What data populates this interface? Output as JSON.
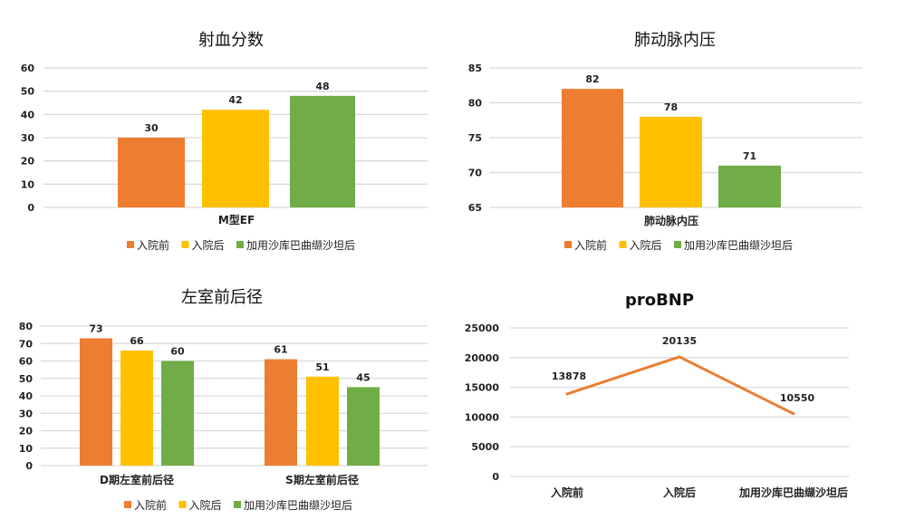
{
  "colors": {
    "入院前": "#ED7D31",
    "入院后": "#FFC000",
    "加用沙库巴曲缬沙坦后": "#70AD47",
    "line": "#ED7D31",
    "grid": "#D9D9D9"
  },
  "chart_data": [
    {
      "type": "bar",
      "title": "射血分数",
      "categories": [
        "M型EF"
      ],
      "series": [
        {
          "name": "入院前",
          "values": [
            30
          ]
        },
        {
          "name": "入院后",
          "values": [
            42
          ]
        },
        {
          "name": "加用沙库巴曲缬沙坦后",
          "values": [
            48
          ]
        }
      ],
      "ylim": [
        0,
        60
      ],
      "yticks": [
        0,
        10,
        20,
        30,
        40,
        50,
        60
      ],
      "grid": true,
      "legend": "bottom"
    },
    {
      "type": "bar",
      "title": "肺动脉内压",
      "categories": [
        "肺动脉内压"
      ],
      "series": [
        {
          "name": "入院前",
          "values": [
            82
          ]
        },
        {
          "name": "入院后",
          "values": [
            78
          ]
        },
        {
          "name": "加用沙库巴曲缬沙坦后",
          "values": [
            71
          ]
        }
      ],
      "ylim": [
        65,
        85
      ],
      "yticks": [
        65,
        70,
        75,
        80,
        85
      ],
      "grid": true,
      "legend": "bottom"
    },
    {
      "type": "bar",
      "title": "左室前后径",
      "categories": [
        "D期左室前后径",
        "S期左室前后径"
      ],
      "series": [
        {
          "name": "入院前",
          "values": [
            73,
            61
          ]
        },
        {
          "name": "入院后",
          "values": [
            66,
            51
          ]
        },
        {
          "name": "加用沙库巴曲缬沙坦后",
          "values": [
            60,
            45
          ]
        }
      ],
      "ylim": [
        0,
        80
      ],
      "yticks": [
        0,
        10,
        20,
        30,
        40,
        50,
        60,
        70,
        80
      ],
      "grid": true,
      "legend": "bottom"
    },
    {
      "type": "line",
      "title": "proBNP",
      "categories": [
        "入院前",
        "入院后",
        "加用沙库巴曲缬沙坦后"
      ],
      "series": [
        {
          "values": [
            13878,
            20135,
            10550
          ]
        }
      ],
      "ylim": [
        0,
        25000
      ],
      "yticks": [
        0,
        5000,
        10000,
        15000,
        20000,
        25000
      ],
      "grid": true,
      "legend": "none"
    }
  ]
}
